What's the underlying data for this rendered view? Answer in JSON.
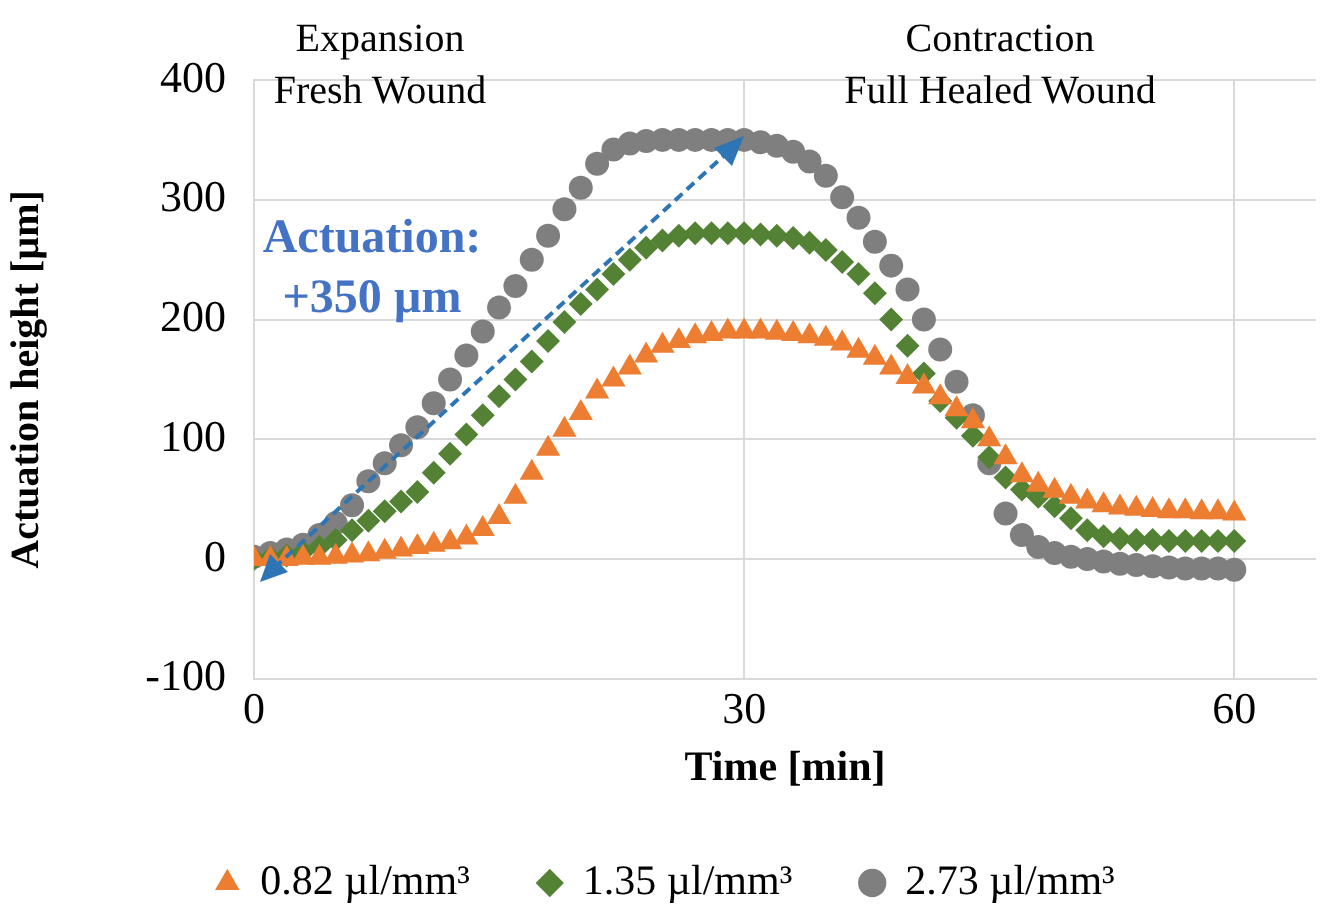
{
  "chart_data": {
    "type": "scatter",
    "xlabel": "Time [min]",
    "ylabel": "Actuation height [µm]",
    "x": [
      0,
      1,
      2,
      3,
      4,
      5,
      6,
      7,
      8,
      9,
      10,
      11,
      12,
      13,
      14,
      15,
      16,
      17,
      18,
      19,
      20,
      21,
      22,
      23,
      24,
      25,
      26,
      27,
      28,
      29,
      30,
      31,
      32,
      33,
      34,
      35,
      36,
      37,
      38,
      39,
      40,
      41,
      42,
      43,
      44,
      45,
      46,
      47,
      48,
      49,
      50,
      51,
      52,
      53,
      54,
      55,
      56,
      57,
      58,
      59,
      60
    ],
    "xlim": [
      0,
      65
    ],
    "xticks": [
      0,
      30,
      60
    ],
    "ylim": [
      -100,
      400
    ],
    "yticks": [
      -100,
      0,
      100,
      200,
      300,
      400
    ],
    "grid": true,
    "legend": "bottom",
    "annotations": [
      "Expansion\nFresh Wound",
      "Contraction\nFull Healed Wound",
      "Actuation:\n+350 µm"
    ],
    "series": [
      {
        "name": "0.82 µl/mm³",
        "color": "#ed7d31",
        "marker": "triangle",
        "values": [
          0,
          0,
          0,
          1,
          1,
          2,
          3,
          4,
          6,
          8,
          10,
          12,
          14,
          18,
          25,
          35,
          52,
          72,
          92,
          108,
          122,
          140,
          150,
          160,
          170,
          178,
          182,
          186,
          188,
          190,
          190,
          190,
          189,
          188,
          186,
          184,
          180,
          174,
          168,
          160,
          152,
          144,
          135,
          125,
          115,
          100,
          85,
          70,
          62,
          57,
          52,
          48,
          45,
          43,
          42,
          41,
          40,
          40,
          39,
          39,
          38
        ]
      },
      {
        "name": "1.35 µl/mm³",
        "color": "#548235",
        "marker": "diamond",
        "values": [
          0,
          1,
          3,
          6,
          10,
          16,
          24,
          32,
          40,
          48,
          56,
          72,
          88,
          104,
          120,
          136,
          150,
          165,
          182,
          198,
          213,
          225,
          238,
          250,
          260,
          266,
          270,
          272,
          272,
          272,
          272,
          271,
          270,
          268,
          264,
          258,
          248,
          238,
          222,
          200,
          178,
          155,
          132,
          118,
          103,
          85,
          68,
          58,
          52,
          44,
          34,
          24,
          19,
          17,
          16,
          16,
          15,
          15,
          15,
          15,
          15
        ]
      },
      {
        "name": "2.73 µl/mm³",
        "color": "#7f7f7f",
        "marker": "circle",
        "values": [
          2,
          5,
          8,
          12,
          20,
          30,
          45,
          65,
          80,
          95,
          110,
          130,
          150,
          170,
          190,
          210,
          228,
          250,
          270,
          292,
          310,
          330,
          342,
          347,
          349,
          350,
          350,
          350,
          350,
          350,
          350,
          348,
          345,
          340,
          332,
          320,
          302,
          285,
          265,
          245,
          225,
          200,
          175,
          148,
          120,
          80,
          38,
          20,
          10,
          5,
          2,
          0,
          -2,
          -4,
          -5,
          -6,
          -7,
          -8,
          -8,
          -8,
          -9
        ]
      }
    ]
  }
}
